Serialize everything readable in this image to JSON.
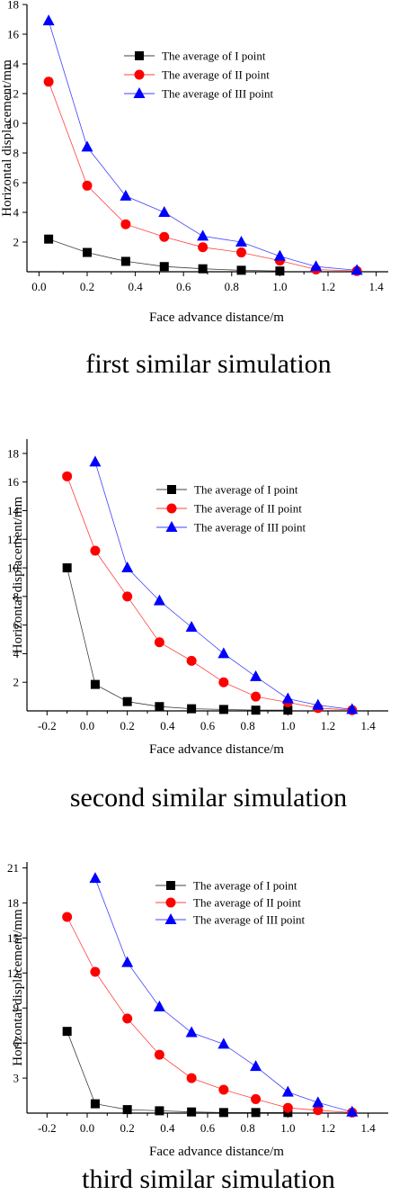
{
  "chart_data": [
    {
      "type": "line",
      "caption": "first similar simulation",
      "xlabel": "Face advance distance/m",
      "ylabel": "Horizontal displacement/mm",
      "xlim": [
        -0.05,
        1.45
      ],
      "ylim": [
        0,
        18
      ],
      "xticks": [
        "0.0",
        "0.2",
        "0.4",
        "0.6",
        "0.8",
        "1.0",
        "1.2",
        "1.4"
      ],
      "xtick_values": [
        0,
        0.2,
        0.4,
        0.6,
        0.8,
        1.0,
        1.2,
        1.4
      ],
      "yticks": [
        "2",
        "4",
        "6",
        "8",
        "10",
        "12",
        "14",
        "16",
        "18"
      ],
      "ytick_values": [
        2,
        4,
        6,
        8,
        10,
        12,
        14,
        16,
        18
      ],
      "legend_position": "top-center",
      "series": [
        {
          "name": "The average of I point",
          "marker": "square",
          "color": "#000000",
          "x": [
            0.04,
            0.2,
            0.36,
            0.52,
            0.68,
            0.84,
            1.0
          ],
          "y": [
            2.2,
            1.3,
            0.7,
            0.35,
            0.2,
            0.1,
            0.05
          ]
        },
        {
          "name": "The average of II point",
          "marker": "circle",
          "color": "#ff0000",
          "x": [
            0.04,
            0.2,
            0.36,
            0.52,
            0.68,
            0.84,
            1.0,
            1.15,
            1.32
          ],
          "y": [
            12.8,
            5.8,
            3.2,
            2.35,
            1.65,
            1.3,
            0.75,
            0.15,
            0.05
          ]
        },
        {
          "name": "The average of III point",
          "marker": "triangle",
          "color": "#0000ff",
          "x": [
            0.04,
            0.2,
            0.36,
            0.52,
            0.68,
            0.84,
            1.0,
            1.15,
            1.32
          ],
          "y": [
            16.9,
            8.4,
            5.1,
            4.0,
            2.4,
            2.0,
            1.05,
            0.35,
            0.1
          ]
        }
      ]
    },
    {
      "type": "line",
      "caption": "second similar simulation",
      "xlabel": "Face advance distance/m",
      "ylabel": "Horizontal displacement/mm",
      "xlim": [
        -0.3,
        1.5
      ],
      "ylim": [
        0,
        19
      ],
      "xticks": [
        "-0.2",
        "0.0",
        "0.2",
        "0.4",
        "0.6",
        "0.8",
        "1.0",
        "1.2",
        "1.4"
      ],
      "xtick_values": [
        -0.2,
        0,
        0.2,
        0.4,
        0.6,
        0.8,
        1.0,
        1.2,
        1.4
      ],
      "yticks": [
        "2",
        "4",
        "6",
        "8",
        "10",
        "12",
        "14",
        "16",
        "18"
      ],
      "ytick_values": [
        2,
        4,
        6,
        8,
        10,
        12,
        14,
        16,
        18
      ],
      "legend_position": "top-center",
      "series": [
        {
          "name": "The average of I point",
          "marker": "square",
          "color": "#000000",
          "x": [
            -0.1,
            0.04,
            0.2,
            0.36,
            0.52,
            0.68,
            0.84,
            1.0
          ],
          "y": [
            10.0,
            1.85,
            0.65,
            0.3,
            0.15,
            0.1,
            0.05,
            0.05
          ]
        },
        {
          "name": "The average of II point",
          "marker": "circle",
          "color": "#ff0000",
          "x": [
            -0.1,
            0.04,
            0.2,
            0.36,
            0.52,
            0.68,
            0.84,
            1.0,
            1.15,
            1.32
          ],
          "y": [
            16.4,
            11.2,
            8.0,
            4.8,
            3.5,
            2.0,
            1.0,
            0.6,
            0.2,
            0.05
          ]
        },
        {
          "name": "The average of III point",
          "marker": "triangle",
          "color": "#0000ff",
          "x": [
            0.04,
            0.2,
            0.36,
            0.52,
            0.68,
            0.84,
            1.0,
            1.15,
            1.32
          ],
          "y": [
            17.4,
            10.0,
            7.7,
            5.85,
            4.0,
            2.4,
            0.85,
            0.4,
            0.1
          ]
        }
      ]
    },
    {
      "type": "line",
      "caption": "third similar simulation",
      "xlabel": "Face advance distance/m",
      "ylabel": "Horizontal displacement/mm",
      "xlim": [
        -0.3,
        1.5
      ],
      "ylim": [
        0,
        21.5
      ],
      "xticks": [
        "-0.2",
        "0.0",
        "0.2",
        "0.4",
        "0.6",
        "0.8",
        "1.0",
        "1.2",
        "1.4"
      ],
      "xtick_values": [
        -0.2,
        0,
        0.2,
        0.4,
        0.6,
        0.8,
        1.0,
        1.2,
        1.4
      ],
      "yticks": [
        "3",
        "6",
        "9",
        "12",
        "15",
        "18",
        "21"
      ],
      "ytick_values": [
        3,
        6,
        9,
        12,
        15,
        18,
        21
      ],
      "legend_position": "top-center",
      "series": [
        {
          "name": "The average of I point",
          "marker": "square",
          "color": "#000000",
          "x": [
            -0.1,
            0.04,
            0.2,
            0.36,
            0.52,
            0.68,
            0.84,
            1.0
          ],
          "y": [
            7.0,
            0.8,
            0.3,
            0.2,
            0.1,
            0.05,
            0.05,
            0.05
          ]
        },
        {
          "name": "The average of II point",
          "marker": "circle",
          "color": "#ff0000",
          "x": [
            -0.1,
            0.04,
            0.2,
            0.36,
            0.52,
            0.68,
            0.84,
            1.0,
            1.15,
            1.32
          ],
          "y": [
            16.8,
            12.1,
            8.1,
            5.0,
            3.0,
            2.0,
            1.2,
            0.45,
            0.25,
            0.05
          ]
        },
        {
          "name": "The average of III point",
          "marker": "triangle",
          "color": "#0000ff",
          "x": [
            0.04,
            0.2,
            0.36,
            0.52,
            0.68,
            0.84,
            1.0,
            1.15,
            1.32
          ],
          "y": [
            20.1,
            12.9,
            9.1,
            6.9,
            5.9,
            4.0,
            1.8,
            0.9,
            0.1
          ]
        }
      ]
    }
  ]
}
